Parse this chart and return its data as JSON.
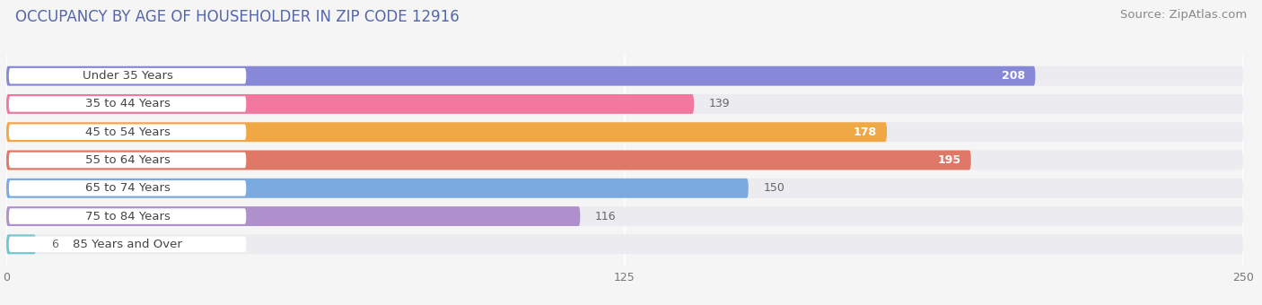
{
  "title": "OCCUPANCY BY AGE OF HOUSEHOLDER IN ZIP CODE 12916",
  "source": "Source: ZipAtlas.com",
  "categories": [
    "Under 35 Years",
    "35 to 44 Years",
    "45 to 54 Years",
    "55 to 64 Years",
    "65 to 74 Years",
    "75 to 84 Years",
    "85 Years and Over"
  ],
  "values": [
    208,
    139,
    178,
    195,
    150,
    116,
    6
  ],
  "bar_colors": [
    "#8888d8",
    "#f278a0",
    "#f0a845",
    "#e07868",
    "#7aaae0",
    "#b090cc",
    "#72c8d0"
  ],
  "xlim": [
    0,
    250
  ],
  "xticks": [
    0,
    125,
    250
  ],
  "title_fontsize": 12,
  "source_fontsize": 9.5,
  "label_fontsize": 9.5,
  "value_fontsize": 9,
  "bar_height": 0.7,
  "background_color": "#f5f5f5",
  "bar_bg_color": "#ebebf0",
  "row_bg_color": "#f0f0f5"
}
